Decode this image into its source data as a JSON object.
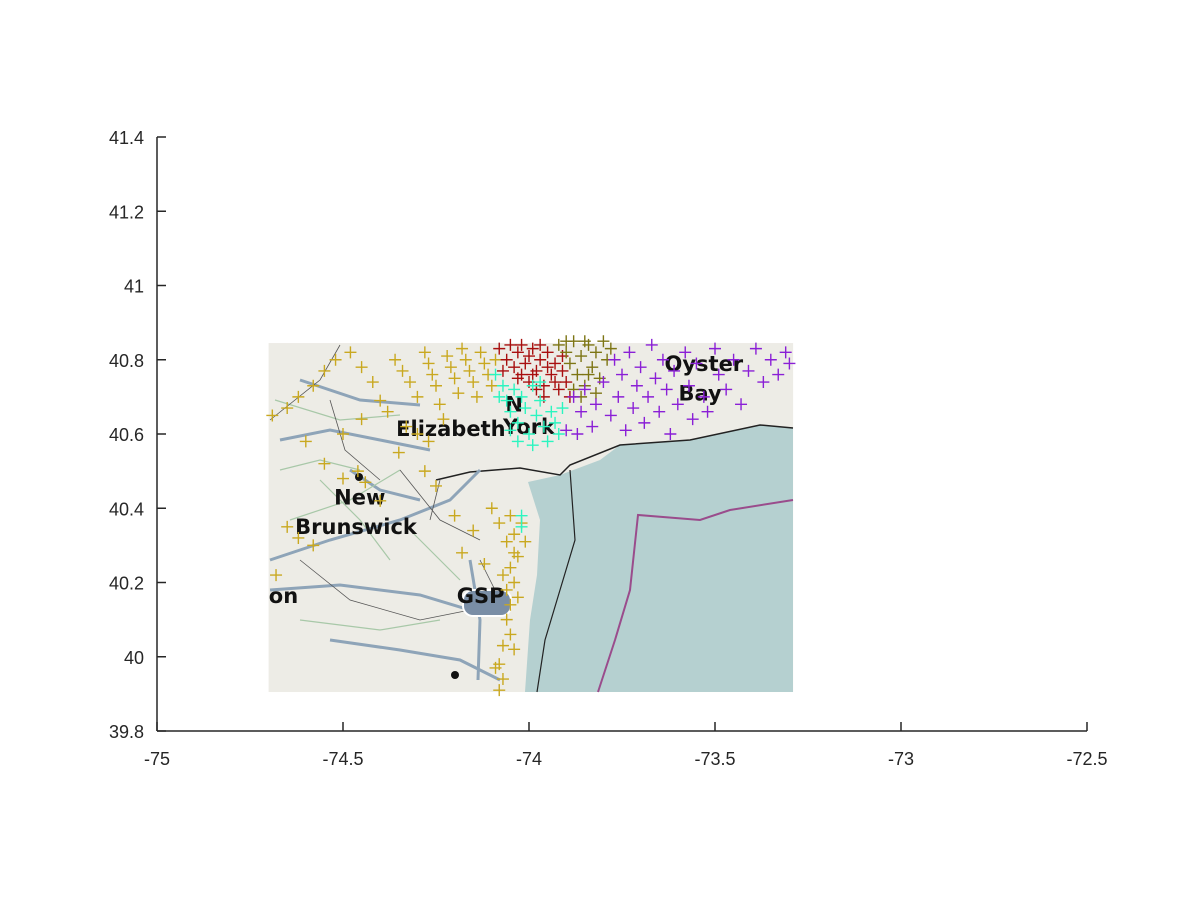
{
  "chart_data": {
    "type": "scatter",
    "title": "",
    "xlabel": "",
    "ylabel": "",
    "xlim": [
      -75,
      -72.5
    ],
    "ylim": [
      39.8,
      41.4
    ],
    "grid": false,
    "x_ticks": [
      -75,
      -74.5,
      -74,
      -73.5,
      -73,
      -72.5
    ],
    "x_tick_labels": [
      "-75",
      "-74.5",
      "-74",
      "-73.5",
      "-73",
      "-72.5"
    ],
    "y_ticks": [
      39.8,
      40,
      40.2,
      40.4,
      40.6,
      40.8,
      41,
      41.2,
      41.4
    ],
    "y_tick_labels": [
      "39.8",
      "40",
      "40.2",
      "40.4",
      "40.6",
      "40.8",
      "41",
      "41.2",
      "41.4"
    ],
    "background_map": {
      "extent": {
        "lon": [
          -74.7,
          -73.29
        ],
        "lat": [
          39.905,
          40.845
        ]
      },
      "place_labels": [
        {
          "text": "Elizabeth",
          "lon": -74.21,
          "lat": 40.595
        },
        {
          "text": "New",
          "lon": -74.455,
          "lat": 40.41
        },
        {
          "text": "Brunswick",
          "lon": -74.465,
          "lat": 40.33
        },
        {
          "text": "on",
          "lon": -74.66,
          "lat": 40.145
        },
        {
          "text": "GSP",
          "lon": -74.13,
          "lat": 40.145
        },
        {
          "text": "Oyster",
          "lon": -73.53,
          "lat": 40.77
        },
        {
          "text": "Bay",
          "lon": -73.54,
          "lat": 40.69
        },
        {
          "text": "N",
          "lon": -74.04,
          "lat": 40.66
        },
        {
          "text": "York",
          "lon": -74.0,
          "lat": 40.6
        }
      ]
    },
    "series": [
      {
        "marker": "+",
        "color": "#C9A820",
        "points": [
          [
            -74.69,
            40.65
          ],
          [
            -74.65,
            40.67
          ],
          [
            -74.62,
            40.7
          ],
          [
            -74.58,
            40.73
          ],
          [
            -74.55,
            40.77
          ],
          [
            -74.52,
            40.8
          ],
          [
            -74.48,
            40.82
          ],
          [
            -74.45,
            40.78
          ],
          [
            -74.42,
            40.74
          ],
          [
            -74.4,
            40.69
          ],
          [
            -74.38,
            40.66
          ],
          [
            -74.36,
            40.8
          ],
          [
            -74.34,
            40.77
          ],
          [
            -74.32,
            40.74
          ],
          [
            -74.3,
            40.7
          ],
          [
            -74.28,
            40.82
          ],
          [
            -74.27,
            40.79
          ],
          [
            -74.26,
            40.76
          ],
          [
            -74.25,
            40.73
          ],
          [
            -74.24,
            40.68
          ],
          [
            -74.23,
            40.64
          ],
          [
            -74.22,
            40.81
          ],
          [
            -74.21,
            40.78
          ],
          [
            -74.2,
            40.75
          ],
          [
            -74.19,
            40.71
          ],
          [
            -74.18,
            40.83
          ],
          [
            -74.17,
            40.8
          ],
          [
            -74.16,
            40.77
          ],
          [
            -74.15,
            40.74
          ],
          [
            -74.14,
            40.7
          ],
          [
            -74.13,
            40.82
          ],
          [
            -74.12,
            40.79
          ],
          [
            -74.11,
            40.76
          ],
          [
            -74.1,
            40.73
          ],
          [
            -74.09,
            40.8
          ],
          [
            -74.6,
            40.58
          ],
          [
            -74.55,
            40.52
          ],
          [
            -74.5,
            40.48
          ],
          [
            -74.46,
            40.5
          ],
          [
            -74.44,
            40.47
          ],
          [
            -74.4,
            40.42
          ],
          [
            -74.35,
            40.55
          ],
          [
            -74.3,
            40.6
          ],
          [
            -74.28,
            40.5
          ],
          [
            -74.25,
            40.46
          ],
          [
            -74.65,
            40.35
          ],
          [
            -74.62,
            40.32
          ],
          [
            -74.58,
            40.3
          ],
          [
            -74.2,
            40.38
          ],
          [
            -74.18,
            40.28
          ],
          [
            -74.15,
            40.34
          ],
          [
            -74.12,
            40.25
          ],
          [
            -74.1,
            40.4
          ],
          [
            -74.08,
            40.36
          ],
          [
            -74.06,
            40.31
          ],
          [
            -74.05,
            40.38
          ],
          [
            -74.04,
            40.33
          ],
          [
            -74.03,
            40.27
          ],
          [
            -74.02,
            40.36
          ],
          [
            -74.01,
            40.31
          ],
          [
            -74.07,
            40.22
          ],
          [
            -74.06,
            40.18
          ],
          [
            -74.05,
            40.14
          ],
          [
            -74.04,
            40.2
          ],
          [
            -74.03,
            40.16
          ],
          [
            -74.06,
            40.1
          ],
          [
            -74.05,
            40.06
          ],
          [
            -74.04,
            40.02
          ],
          [
            -74.07,
            40.03
          ],
          [
            -74.08,
            39.98
          ],
          [
            -74.07,
            39.94
          ],
          [
            -74.08,
            39.91
          ],
          [
            -74.09,
            39.97
          ],
          [
            -74.05,
            40.24
          ],
          [
            -74.04,
            40.28
          ],
          [
            -74.68,
            40.22
          ],
          [
            -74.5,
            40.6
          ],
          [
            -74.45,
            40.64
          ],
          [
            -74.33,
            40.62
          ],
          [
            -74.27,
            40.58
          ]
        ]
      },
      {
        "marker": "+",
        "color": "#A80F0F",
        "points": [
          [
            -74.08,
            40.83
          ],
          [
            -74.06,
            40.8
          ],
          [
            -74.04,
            40.78
          ],
          [
            -74.03,
            40.82
          ],
          [
            -74.02,
            40.76
          ],
          [
            -74.01,
            40.79
          ],
          [
            -74.0,
            40.74
          ],
          [
            -73.99,
            40.83
          ],
          [
            -73.98,
            40.77
          ],
          [
            -73.97,
            40.8
          ],
          [
            -73.96,
            40.73
          ],
          [
            -73.95,
            40.82
          ],
          [
            -73.94,
            40.76
          ],
          [
            -73.93,
            40.79
          ],
          [
            -73.92,
            40.72
          ],
          [
            -73.91,
            40.77
          ],
          [
            -73.9,
            40.74
          ],
          [
            -73.89,
            40.7
          ],
          [
            -74.05,
            40.84
          ],
          [
            -73.97,
            40.84
          ],
          [
            -74.0,
            40.81
          ],
          [
            -73.95,
            40.78
          ],
          [
            -74.03,
            40.75
          ],
          [
            -73.93,
            40.74
          ],
          [
            -73.99,
            40.76
          ],
          [
            -74.07,
            40.77
          ],
          [
            -73.96,
            40.7
          ],
          [
            -73.98,
            40.72
          ],
          [
            -74.02,
            40.84
          ],
          [
            -73.91,
            40.81
          ]
        ]
      },
      {
        "marker": "+",
        "color": "#7D7514",
        "points": [
          [
            -73.92,
            40.84
          ],
          [
            -73.9,
            40.82
          ],
          [
            -73.89,
            40.79
          ],
          [
            -73.88,
            40.85
          ],
          [
            -73.87,
            40.76
          ],
          [
            -73.86,
            40.81
          ],
          [
            -73.85,
            40.73
          ],
          [
            -73.84,
            40.84
          ],
          [
            -73.83,
            40.78
          ],
          [
            -73.82,
            40.82
          ],
          [
            -73.81,
            40.75
          ],
          [
            -73.8,
            40.85
          ],
          [
            -73.79,
            40.8
          ],
          [
            -73.78,
            40.83
          ],
          [
            -73.86,
            40.7
          ],
          [
            -73.84,
            40.76
          ],
          [
            -73.88,
            40.72
          ],
          [
            -73.82,
            40.71
          ],
          [
            -73.9,
            40.85
          ],
          [
            -73.85,
            40.85
          ]
        ]
      },
      {
        "marker": "+",
        "color": "#2BF5C0",
        "points": [
          [
            -74.09,
            40.76
          ],
          [
            -74.07,
            40.73
          ],
          [
            -74.06,
            40.69
          ],
          [
            -74.05,
            40.66
          ],
          [
            -74.04,
            40.72
          ],
          [
            -74.03,
            40.63
          ],
          [
            -74.02,
            40.7
          ],
          [
            -74.01,
            40.67
          ],
          [
            -74.0,
            40.6
          ],
          [
            -73.99,
            40.73
          ],
          [
            -73.98,
            40.65
          ],
          [
            -73.97,
            40.69
          ],
          [
            -73.96,
            40.62
          ],
          [
            -73.95,
            40.58
          ],
          [
            -73.94,
            40.66
          ],
          [
            -73.93,
            40.63
          ],
          [
            -73.92,
            40.6
          ],
          [
            -73.91,
            40.67
          ],
          [
            -74.03,
            40.58
          ],
          [
            -74.05,
            40.61
          ],
          [
            -73.99,
            40.57
          ],
          [
            -74.08,
            40.7
          ],
          [
            -73.97,
            40.74
          ],
          [
            -74.02,
            40.38
          ],
          [
            -74.02,
            40.35
          ]
        ]
      },
      {
        "marker": "+",
        "color": "#8A1FD6",
        "points": [
          [
            -73.88,
            40.7
          ],
          [
            -73.86,
            40.66
          ],
          [
            -73.85,
            40.72
          ],
          [
            -73.83,
            40.62
          ],
          [
            -73.82,
            40.68
          ],
          [
            -73.8,
            40.74
          ],
          [
            -73.78,
            40.65
          ],
          [
            -73.77,
            40.8
          ],
          [
            -73.76,
            40.7
          ],
          [
            -73.75,
            40.76
          ],
          [
            -73.74,
            40.61
          ],
          [
            -73.73,
            40.82
          ],
          [
            -73.72,
            40.67
          ],
          [
            -73.71,
            40.73
          ],
          [
            -73.7,
            40.78
          ],
          [
            -73.69,
            40.63
          ],
          [
            -73.68,
            40.7
          ],
          [
            -73.67,
            40.84
          ],
          [
            -73.66,
            40.75
          ],
          [
            -73.65,
            40.66
          ],
          [
            -73.64,
            40.8
          ],
          [
            -73.63,
            40.72
          ],
          [
            -73.62,
            40.6
          ],
          [
            -73.61,
            40.77
          ],
          [
            -73.6,
            40.68
          ],
          [
            -73.58,
            40.82
          ],
          [
            -73.57,
            40.73
          ],
          [
            -73.56,
            40.64
          ],
          [
            -73.55,
            40.79
          ],
          [
            -73.53,
            40.7
          ],
          [
            -73.52,
            40.66
          ],
          [
            -73.5,
            40.83
          ],
          [
            -73.49,
            40.76
          ],
          [
            -73.47,
            40.72
          ],
          [
            -73.45,
            40.8
          ],
          [
            -73.43,
            40.68
          ],
          [
            -73.41,
            40.77
          ],
          [
            -73.39,
            40.83
          ],
          [
            -73.37,
            40.74
          ],
          [
            -73.35,
            40.8
          ],
          [
            -73.33,
            40.76
          ],
          [
            -73.31,
            40.82
          ],
          [
            -73.3,
            40.79
          ],
          [
            -73.9,
            40.61
          ],
          [
            -73.87,
            40.6
          ]
        ]
      }
    ]
  }
}
